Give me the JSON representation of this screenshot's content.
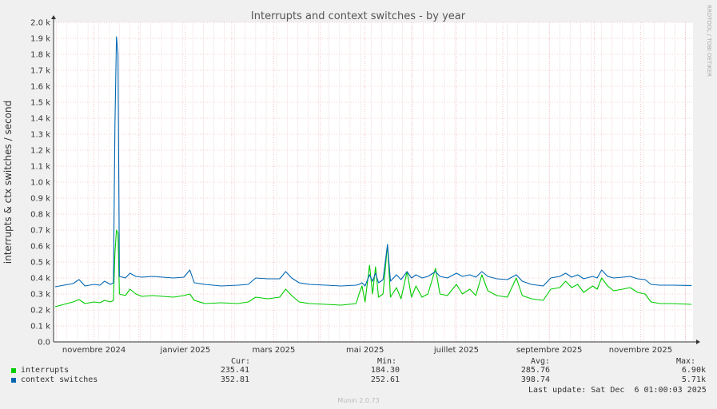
{
  "chart_data": {
    "type": "line",
    "title": "Interrupts and context switches - by year",
    "ylabel": "interrupts & ctx switches / second",
    "side_text": "RRDTOOL / TOBI OETIKER",
    "ylim": [
      0,
      2000
    ],
    "y_ticks": [
      {
        "value": 0,
        "label": "0.0"
      },
      {
        "value": 100,
        "label": "0.1 k"
      },
      {
        "value": 200,
        "label": "0.2 k"
      },
      {
        "value": 300,
        "label": "0.3 k"
      },
      {
        "value": 400,
        "label": "0.4 k"
      },
      {
        "value": 500,
        "label": "0.5 k"
      },
      {
        "value": 600,
        "label": "0.6 k"
      },
      {
        "value": 700,
        "label": "0.7 k"
      },
      {
        "value": 800,
        "label": "0.8 k"
      },
      {
        "value": 900,
        "label": "0.9 k"
      },
      {
        "value": 1000,
        "label": "1.0 k"
      },
      {
        "value": 1100,
        "label": "1.1 k"
      },
      {
        "value": 1200,
        "label": "1.2 k"
      },
      {
        "value": 1300,
        "label": "1.3 k"
      },
      {
        "value": 1400,
        "label": "1.4 k"
      },
      {
        "value": 1500,
        "label": "1.5 k"
      },
      {
        "value": 1600,
        "label": "1.6 k"
      },
      {
        "value": 1700,
        "label": "1.7 k"
      },
      {
        "value": 1800,
        "label": "1.8 k"
      },
      {
        "value": 1900,
        "label": "1.9 k"
      },
      {
        "value": 2000,
        "label": "2.0 k"
      }
    ],
    "xlim": [
      "2024-10-05",
      "2025-12-06"
    ],
    "x_ticks": [
      {
        "date": "2024-11-01",
        "label": "novembre 2024"
      },
      {
        "date": "2025-01-01",
        "label": "janvier 2025"
      },
      {
        "date": "2025-03-01",
        "label": "mars 2025"
      },
      {
        "date": "2025-05-01",
        "label": "mai 2025"
      },
      {
        "date": "2025-07-01",
        "label": "juillet 2025"
      },
      {
        "date": "2025-09-01",
        "label": "septembre 2025"
      },
      {
        "date": "2025-11-01",
        "label": "novembre 2025"
      }
    ],
    "grid": true,
    "series": [
      {
        "name": "interrupts",
        "color": "#00cc00",
        "cur": "235.41",
        "min": "184.30",
        "avg": "285.76",
        "max": "6.90k",
        "points": [
          [
            "2024-10-06",
            220
          ],
          [
            "2024-10-12",
            235
          ],
          [
            "2024-10-18",
            250
          ],
          [
            "2024-10-22",
            265
          ],
          [
            "2024-10-26",
            240
          ],
          [
            "2024-11-01",
            250
          ],
          [
            "2024-11-05",
            245
          ],
          [
            "2024-11-08",
            260
          ],
          [
            "2024-11-12",
            250
          ],
          [
            "2024-11-14",
            260
          ],
          [
            "2024-11-15",
            560
          ],
          [
            "2024-11-16",
            700
          ],
          [
            "2024-11-17",
            680
          ],
          [
            "2024-11-18",
            300
          ],
          [
            "2024-11-22",
            290
          ],
          [
            "2024-11-25",
            330
          ],
          [
            "2024-11-29",
            300
          ],
          [
            "2024-12-03",
            285
          ],
          [
            "2024-12-10",
            290
          ],
          [
            "2024-12-17",
            285
          ],
          [
            "2024-12-24",
            280
          ],
          [
            "2024-12-31",
            290
          ],
          [
            "2025-01-04",
            300
          ],
          [
            "2025-01-07",
            260
          ],
          [
            "2025-01-14",
            240
          ],
          [
            "2025-01-25",
            245
          ],
          [
            "2025-02-05",
            240
          ],
          [
            "2025-02-12",
            250
          ],
          [
            "2025-02-17",
            280
          ],
          [
            "2025-02-25",
            270
          ],
          [
            "2025-03-05",
            280
          ],
          [
            "2025-03-09",
            330
          ],
          [
            "2025-03-13",
            290
          ],
          [
            "2025-03-18",
            250
          ],
          [
            "2025-03-25",
            240
          ],
          [
            "2025-04-05",
            235
          ],
          [
            "2025-04-15",
            230
          ],
          [
            "2025-04-25",
            240
          ],
          [
            "2025-04-27",
            300
          ],
          [
            "2025-04-29",
            350
          ],
          [
            "2025-05-01",
            250
          ],
          [
            "2025-05-04",
            480
          ],
          [
            "2025-05-06",
            300
          ],
          [
            "2025-05-08",
            470
          ],
          [
            "2025-05-10",
            280
          ],
          [
            "2025-05-13",
            300
          ],
          [
            "2025-05-16",
            610
          ],
          [
            "2025-05-18",
            280
          ],
          [
            "2025-05-22",
            340
          ],
          [
            "2025-05-25",
            270
          ],
          [
            "2025-05-29",
            440
          ],
          [
            "2025-06-01",
            280
          ],
          [
            "2025-06-04",
            350
          ],
          [
            "2025-06-08",
            280
          ],
          [
            "2025-06-12",
            300
          ],
          [
            "2025-06-17",
            460
          ],
          [
            "2025-06-20",
            300
          ],
          [
            "2025-06-25",
            290
          ],
          [
            "2025-07-01",
            360
          ],
          [
            "2025-07-05",
            300
          ],
          [
            "2025-07-10",
            330
          ],
          [
            "2025-07-14",
            290
          ],
          [
            "2025-07-18",
            420
          ],
          [
            "2025-07-22",
            320
          ],
          [
            "2025-07-28",
            290
          ],
          [
            "2025-08-04",
            280
          ],
          [
            "2025-08-10",
            400
          ],
          [
            "2025-08-14",
            290
          ],
          [
            "2025-08-20",
            270
          ],
          [
            "2025-08-28",
            260
          ],
          [
            "2025-09-02",
            330
          ],
          [
            "2025-09-08",
            340
          ],
          [
            "2025-09-12",
            380
          ],
          [
            "2025-09-16",
            340
          ],
          [
            "2025-09-20",
            360
          ],
          [
            "2025-09-24",
            310
          ],
          [
            "2025-09-30",
            350
          ],
          [
            "2025-10-03",
            330
          ],
          [
            "2025-10-06",
            400
          ],
          [
            "2025-10-10",
            350
          ],
          [
            "2025-10-14",
            320
          ],
          [
            "2025-10-20",
            330
          ],
          [
            "2025-10-25",
            340
          ],
          [
            "2025-10-30",
            310
          ],
          [
            "2025-11-04",
            300
          ],
          [
            "2025-11-08",
            250
          ],
          [
            "2025-11-14",
            240
          ],
          [
            "2025-11-22",
            240
          ],
          [
            "2025-12-05",
            235
          ]
        ]
      },
      {
        "name": "context switches",
        "color": "#0066b3",
        "cur": "352.81",
        "min": "252.61",
        "avg": "398.74",
        "max": "5.71k",
        "points": [
          [
            "2024-10-06",
            345
          ],
          [
            "2024-10-12",
            355
          ],
          [
            "2024-10-18",
            365
          ],
          [
            "2024-10-22",
            390
          ],
          [
            "2024-10-26",
            350
          ],
          [
            "2024-11-01",
            360
          ],
          [
            "2024-11-05",
            355
          ],
          [
            "2024-11-08",
            380
          ],
          [
            "2024-11-12",
            360
          ],
          [
            "2024-11-14",
            370
          ],
          [
            "2024-11-15",
            1360
          ],
          [
            "2024-11-16",
            1910
          ],
          [
            "2024-11-17",
            1800
          ],
          [
            "2024-11-18",
            410
          ],
          [
            "2024-11-22",
            400
          ],
          [
            "2024-11-25",
            430
          ],
          [
            "2024-11-29",
            410
          ],
          [
            "2024-12-03",
            405
          ],
          [
            "2024-12-10",
            410
          ],
          [
            "2024-12-17",
            405
          ],
          [
            "2024-12-24",
            400
          ],
          [
            "2024-12-31",
            405
          ],
          [
            "2025-01-04",
            450
          ],
          [
            "2025-01-07",
            370
          ],
          [
            "2025-01-14",
            360
          ],
          [
            "2025-01-25",
            350
          ],
          [
            "2025-02-05",
            355
          ],
          [
            "2025-02-12",
            360
          ],
          [
            "2025-02-17",
            400
          ],
          [
            "2025-02-25",
            395
          ],
          [
            "2025-03-05",
            395
          ],
          [
            "2025-03-09",
            440
          ],
          [
            "2025-03-13",
            400
          ],
          [
            "2025-03-18",
            370
          ],
          [
            "2025-03-25",
            360
          ],
          [
            "2025-04-05",
            355
          ],
          [
            "2025-04-15",
            350
          ],
          [
            "2025-04-25",
            355
          ],
          [
            "2025-04-27",
            360
          ],
          [
            "2025-04-29",
            370
          ],
          [
            "2025-05-01",
            350
          ],
          [
            "2025-05-04",
            420
          ],
          [
            "2025-05-06",
            380
          ],
          [
            "2025-05-08",
            430
          ],
          [
            "2025-05-10",
            370
          ],
          [
            "2025-05-13",
            390
          ],
          [
            "2025-05-16",
            610
          ],
          [
            "2025-05-18",
            380
          ],
          [
            "2025-05-22",
            420
          ],
          [
            "2025-05-25",
            390
          ],
          [
            "2025-05-29",
            440
          ],
          [
            "2025-06-01",
            400
          ],
          [
            "2025-06-04",
            420
          ],
          [
            "2025-06-08",
            400
          ],
          [
            "2025-06-12",
            410
          ],
          [
            "2025-06-17",
            440
          ],
          [
            "2025-06-20",
            410
          ],
          [
            "2025-06-25",
            400
          ],
          [
            "2025-07-01",
            430
          ],
          [
            "2025-07-05",
            410
          ],
          [
            "2025-07-10",
            420
          ],
          [
            "2025-07-14",
            405
          ],
          [
            "2025-07-18",
            440
          ],
          [
            "2025-07-22",
            410
          ],
          [
            "2025-07-28",
            395
          ],
          [
            "2025-08-04",
            390
          ],
          [
            "2025-08-10",
            420
          ],
          [
            "2025-08-14",
            380
          ],
          [
            "2025-08-20",
            360
          ],
          [
            "2025-08-28",
            350
          ],
          [
            "2025-09-02",
            400
          ],
          [
            "2025-09-08",
            410
          ],
          [
            "2025-09-12",
            430
          ],
          [
            "2025-09-16",
            405
          ],
          [
            "2025-09-20",
            420
          ],
          [
            "2025-09-24",
            395
          ],
          [
            "2025-09-30",
            410
          ],
          [
            "2025-10-03",
            400
          ],
          [
            "2025-10-06",
            450
          ],
          [
            "2025-10-10",
            410
          ],
          [
            "2025-10-14",
            400
          ],
          [
            "2025-10-20",
            405
          ],
          [
            "2025-10-25",
            410
          ],
          [
            "2025-10-30",
            395
          ],
          [
            "2025-11-04",
            390
          ],
          [
            "2025-11-08",
            360
          ],
          [
            "2025-11-14",
            355
          ],
          [
            "2025-11-22",
            355
          ],
          [
            "2025-12-05",
            353
          ]
        ]
      }
    ]
  },
  "legend": {
    "col_cur": "Cur:",
    "col_min": "Min:",
    "col_avg": "Avg:",
    "col_max": "Max:"
  },
  "last_update": "Last update: Sat Dec  6 01:00:03 2025",
  "footer": "Munin 2.0.73"
}
